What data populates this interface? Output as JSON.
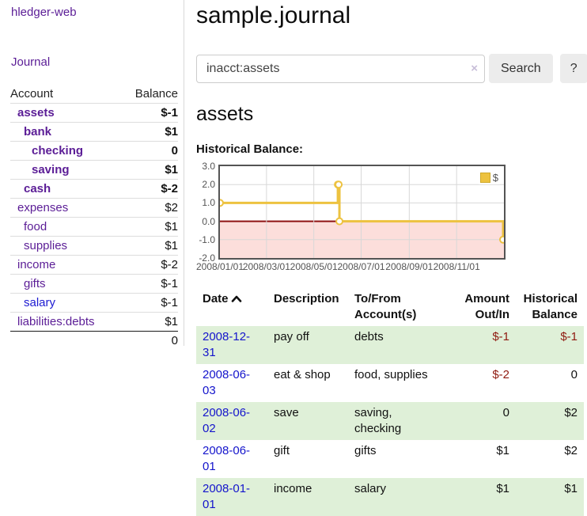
{
  "app": {
    "brand": "hledger-web",
    "nav_journal": "Journal"
  },
  "colors": {
    "link_purple": "#5b1d96",
    "link_blue": "#1d1ad2",
    "negative_strong": "#8f1414",
    "negative_soft": "#bd8d8d",
    "row_stripe_green": "#dff0d8",
    "series_gold": "#edc240",
    "chart_negative_region": "#fcdedb",
    "chart_zero_line": "#8e1212",
    "chart_frame": "#545454"
  },
  "sidebar": {
    "headers": {
      "account": "Account",
      "balance": "Balance"
    },
    "accounts": [
      {
        "name": "assets",
        "indent": 0,
        "balance": "$-1",
        "bold": true
      },
      {
        "name": "bank",
        "indent": 1,
        "balance": "$1",
        "bold": true
      },
      {
        "name": "checking",
        "indent": 2,
        "balance": "0",
        "bold": true
      },
      {
        "name": "saving",
        "indent": 2,
        "balance": "$1",
        "bold": true
      },
      {
        "name": "cash",
        "indent": 1,
        "balance": "$-2",
        "bold": true
      },
      {
        "name": "expenses",
        "indent": 0,
        "balance": "$2",
        "bold": false
      },
      {
        "name": "food",
        "indent": 1,
        "balance": "$1",
        "bold": false
      },
      {
        "name": "supplies",
        "indent": 1,
        "balance": "$1",
        "bold": false
      },
      {
        "name": "income",
        "indent": 0,
        "balance": "$-2",
        "bold": false
      },
      {
        "name": "gifts",
        "indent": 1,
        "balance": "$-1",
        "bold": false
      },
      {
        "name": "salary",
        "indent": 1,
        "balance": "$-1",
        "bold": false
      },
      {
        "name": "liabilities:debts",
        "indent": 0,
        "balance": "$1",
        "bold": false
      }
    ],
    "total": "0"
  },
  "header": {
    "title": "sample.journal"
  },
  "search": {
    "value": "inacct:assets",
    "clear_icon": "×",
    "button_label": "Search",
    "help_label": "?"
  },
  "account_page": {
    "title": "assets",
    "chart_label": "Historical Balance:"
  },
  "chart_data": {
    "type": "line",
    "style": "steps",
    "title": "Historical Balance:",
    "series": [
      {
        "name": "$",
        "color": "#edc240",
        "points": [
          [
            "2008-01-01",
            1
          ],
          [
            "2008-06-01",
            2
          ],
          [
            "2008-06-02",
            2
          ],
          [
            "2008-06-03",
            0
          ],
          [
            "2008-12-31",
            -1
          ]
        ]
      }
    ],
    "xlim": [
      "2008-01-01",
      "2009-01-01"
    ],
    "ylim": [
      -2,
      3
    ],
    "yticks": [
      "3.0",
      "2.0",
      "1.0",
      "0.0",
      "-1.0",
      "-2.0"
    ],
    "xticks": [
      {
        "date": "2008-01-01",
        "label": "2008/01/01"
      },
      {
        "date": "2008-03-01",
        "label": "2008/03/01"
      },
      {
        "date": "2008-05-01",
        "label": "2008/05/01"
      },
      {
        "date": "2008-07-01",
        "label": "2008/07/01"
      },
      {
        "date": "2008-09-01",
        "label": "2008/09/01"
      },
      {
        "date": "2008-11-01",
        "label": "2008/11/01"
      }
    ],
    "legend_position": "top-right",
    "grid": true,
    "negative_region": true
  },
  "register": {
    "headers": {
      "date": "Date",
      "description": "Description",
      "to_from": "To/From\nAccount(s)",
      "amount": "Amount\nOut/In",
      "historical": "Historical\nBalance"
    },
    "sort_icon": "chevron-up",
    "rows": [
      {
        "date": "2008-12-31",
        "description": "pay off",
        "to_from": "debts",
        "amount": "$-1",
        "historical": "$-1"
      },
      {
        "date": "2008-06-03",
        "description": "eat & shop",
        "to_from": "food, supplies",
        "amount": "$-2",
        "historical": "0"
      },
      {
        "date": "2008-06-02",
        "description": "save",
        "to_from": "saving,\nchecking",
        "amount": "0",
        "historical": "$2"
      },
      {
        "date": "2008-06-01",
        "description": "gift",
        "to_from": "gifts",
        "amount": "$1",
        "historical": "$2"
      },
      {
        "date": "2008-01-01",
        "description": "income",
        "to_from": "salary",
        "amount": "$1",
        "historical": "$1"
      }
    ]
  }
}
